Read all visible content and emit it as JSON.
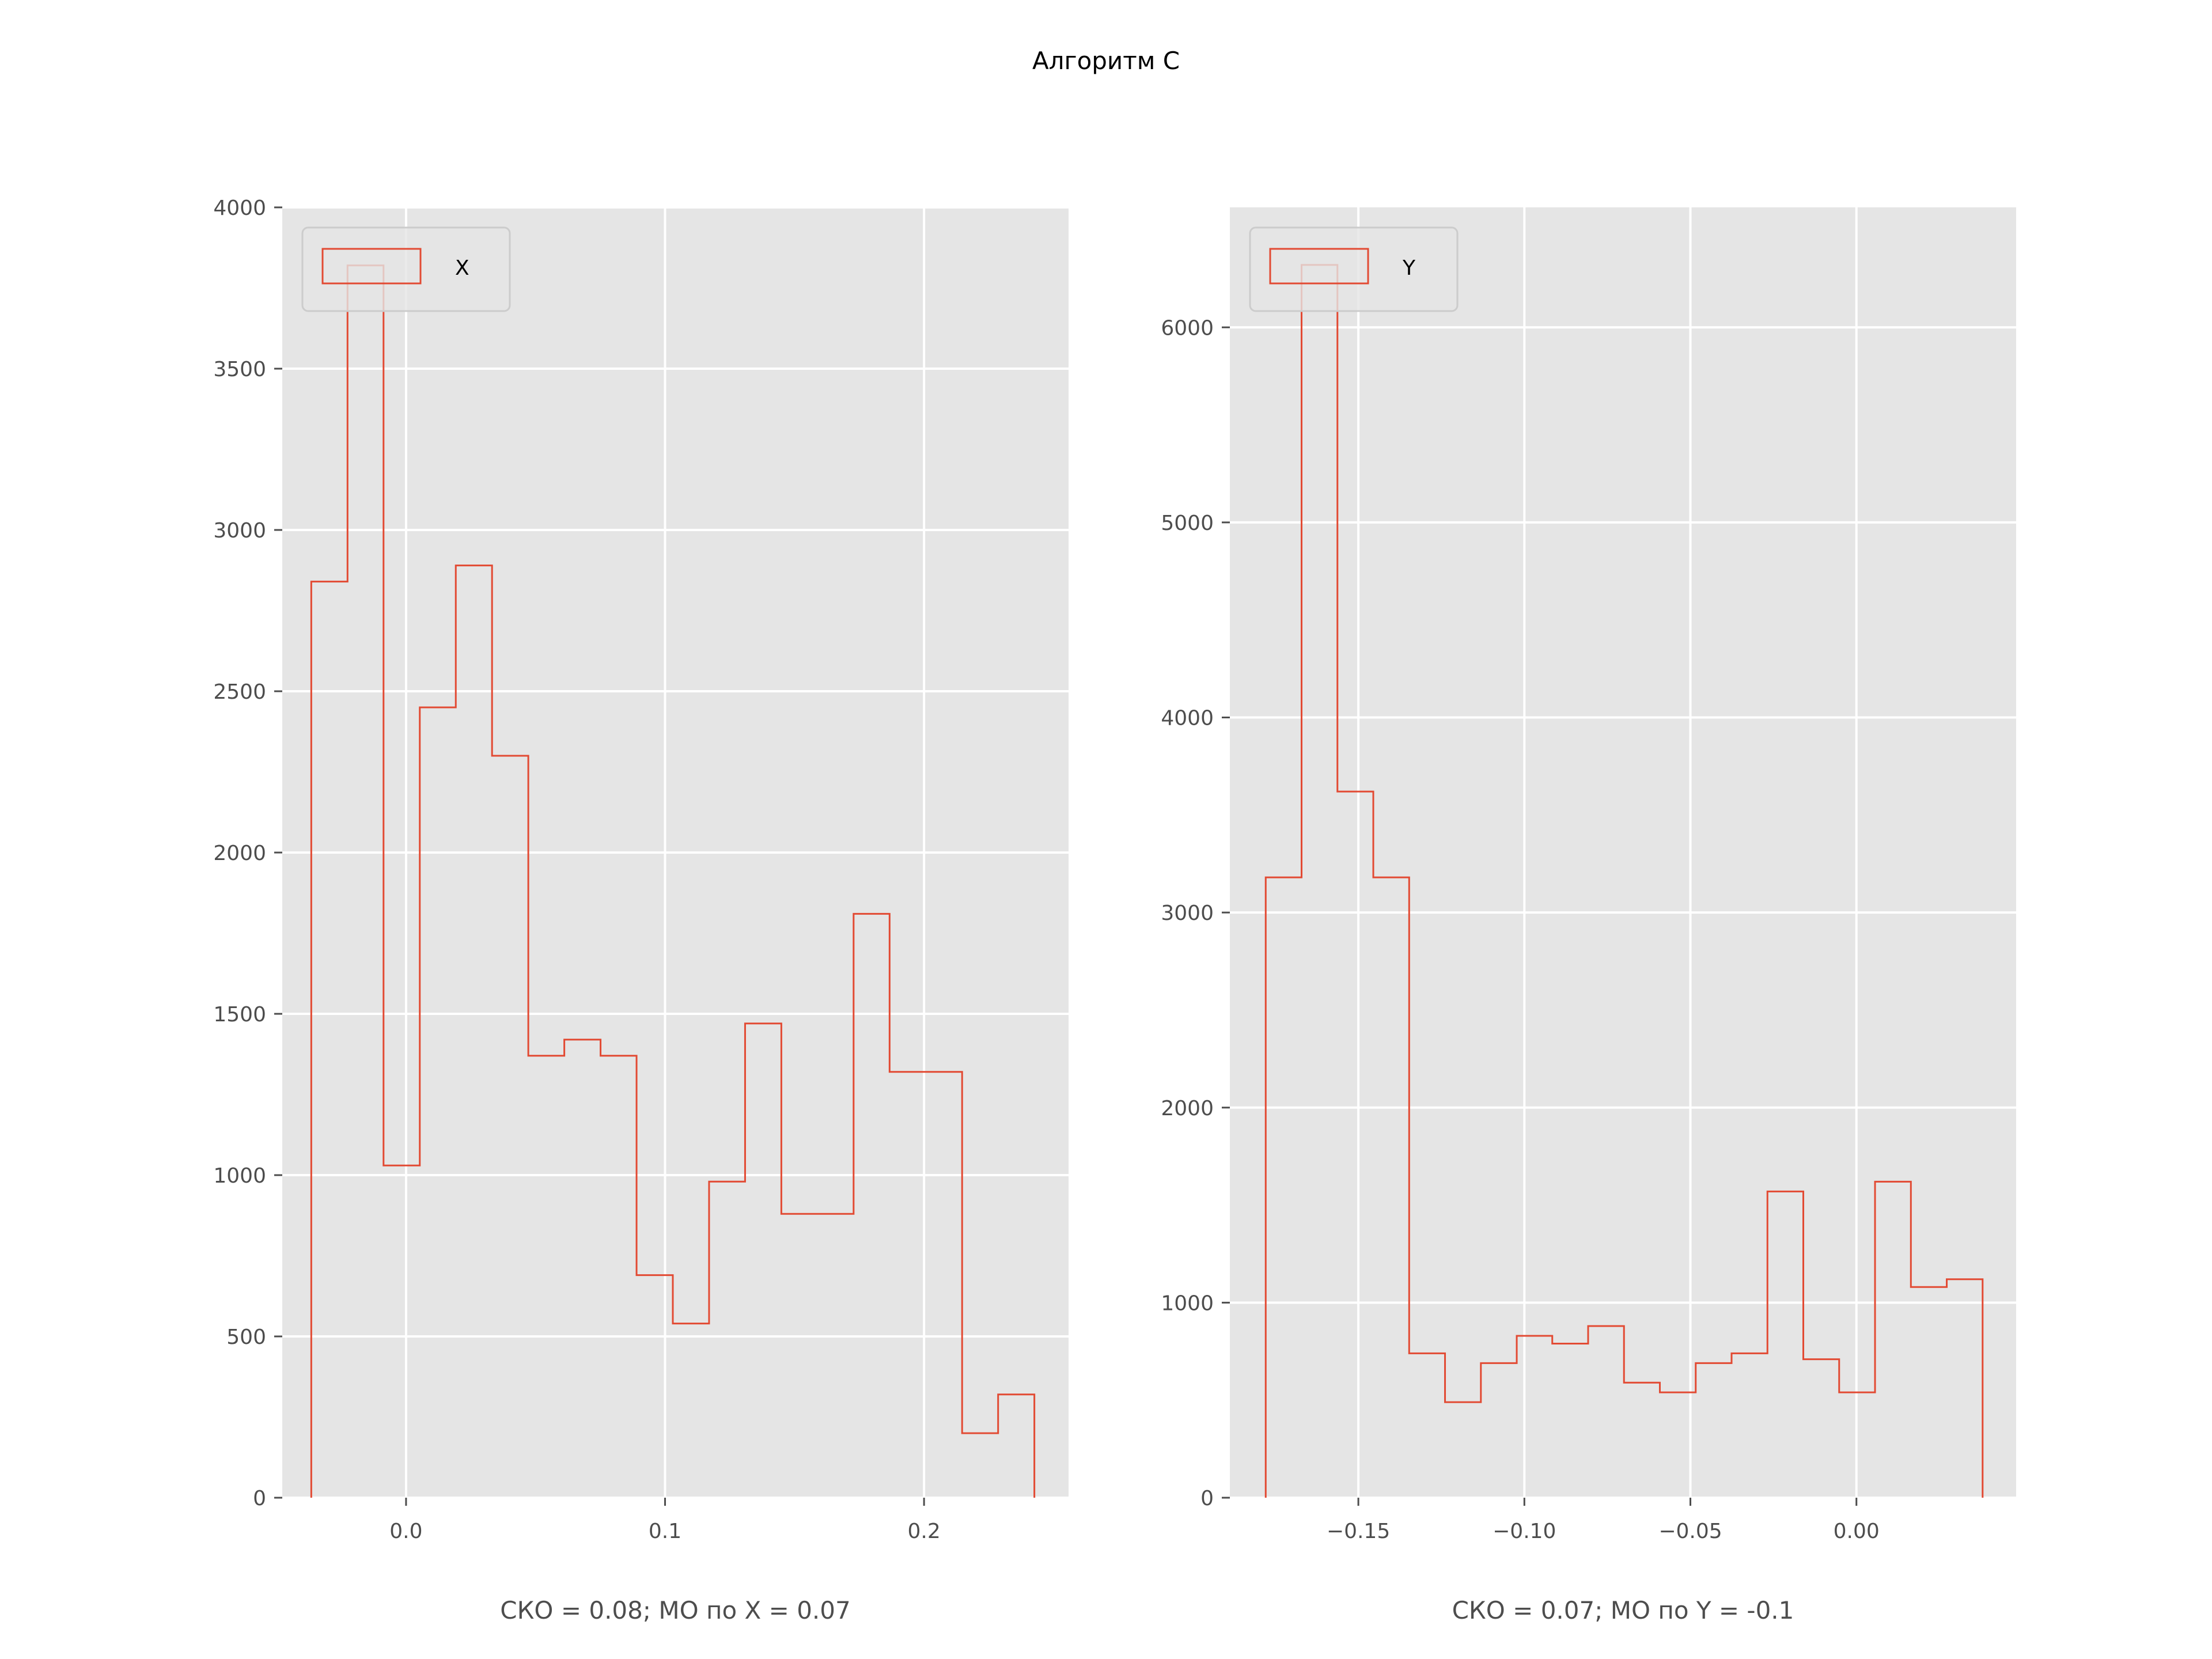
{
  "figure": {
    "suptitle": "Алгоритм C"
  },
  "colors": {
    "axes_background": "#e5e5e5",
    "grid": "#ffffff",
    "series": "#e24a33",
    "tick_text": "#4d4d4d"
  },
  "chart_data": [
    {
      "type": "histogram",
      "style": "step",
      "xlabel": "СКО = 0.08; МО по X = 0.07",
      "xlim": [
        -0.0478,
        0.2558
      ],
      "ylim": [
        0,
        4000
      ],
      "xticks": [
        0.0,
        0.1,
        0.2
      ],
      "xtick_labels": [
        "0.0",
        "0.1",
        "0.2"
      ],
      "yticks": [
        0,
        500,
        1000,
        1500,
        2000,
        2500,
        3000,
        3500,
        4000
      ],
      "ytick_labels": [
        "0",
        "500",
        "1000",
        "1500",
        "2000",
        "2500",
        "3000",
        "3500",
        "4000"
      ],
      "grid": true,
      "legend": {
        "location": "upper left",
        "entries": [
          "X"
        ]
      },
      "series": [
        {
          "name": "X",
          "bin_edges": [
            -0.0366,
            -0.0226,
            -0.0087,
            0.0053,
            0.0192,
            0.0332,
            0.0472,
            0.0611,
            0.0751,
            0.089,
            0.103,
            0.117,
            0.1309,
            0.1449,
            0.1588,
            0.1728,
            0.1867,
            0.2007,
            0.2147,
            0.2286,
            0.2426
          ],
          "counts": [
            2840,
            3820,
            1030,
            2450,
            2890,
            2300,
            1370,
            1420,
            1370,
            690,
            540,
            980,
            1470,
            880,
            880,
            1810,
            1320,
            1320,
            200,
            320
          ]
        }
      ]
    },
    {
      "type": "histogram",
      "style": "step",
      "xlabel": "СКО = 0.07; МО по Y = -0.1",
      "xlim": [
        -0.1887,
        0.0481
      ],
      "ylim": [
        0,
        6615
      ],
      "xticks": [
        -0.15,
        -0.1,
        -0.05,
        0.0
      ],
      "xtick_labels": [
        "−0.15",
        "−0.10",
        "−0.05",
        "0.00"
      ],
      "yticks": [
        0,
        1000,
        2000,
        3000,
        4000,
        5000,
        6000
      ],
      "ytick_labels": [
        "0",
        "1000",
        "2000",
        "3000",
        "4000",
        "5000",
        "6000"
      ],
      "grid": true,
      "legend": {
        "location": "upper left",
        "entries": [
          "Y"
        ]
      },
      "series": [
        {
          "name": "Y",
          "bin_edges": [
            -0.1779,
            -0.1671,
            -0.1563,
            -0.1455,
            -0.1347,
            -0.1239,
            -0.1131,
            -0.1023,
            -0.0916,
            -0.0808,
            -0.07,
            -0.0592,
            -0.0484,
            -0.0376,
            -0.0268,
            -0.016,
            -0.0052,
            0.0056,
            0.0164,
            0.0272,
            0.038
          ],
          "counts": [
            3180,
            6320,
            3620,
            3180,
            740,
            490,
            690,
            830,
            790,
            880,
            590,
            540,
            690,
            740,
            1570,
            710,
            540,
            1620,
            1080,
            1120
          ]
        }
      ]
    }
  ]
}
